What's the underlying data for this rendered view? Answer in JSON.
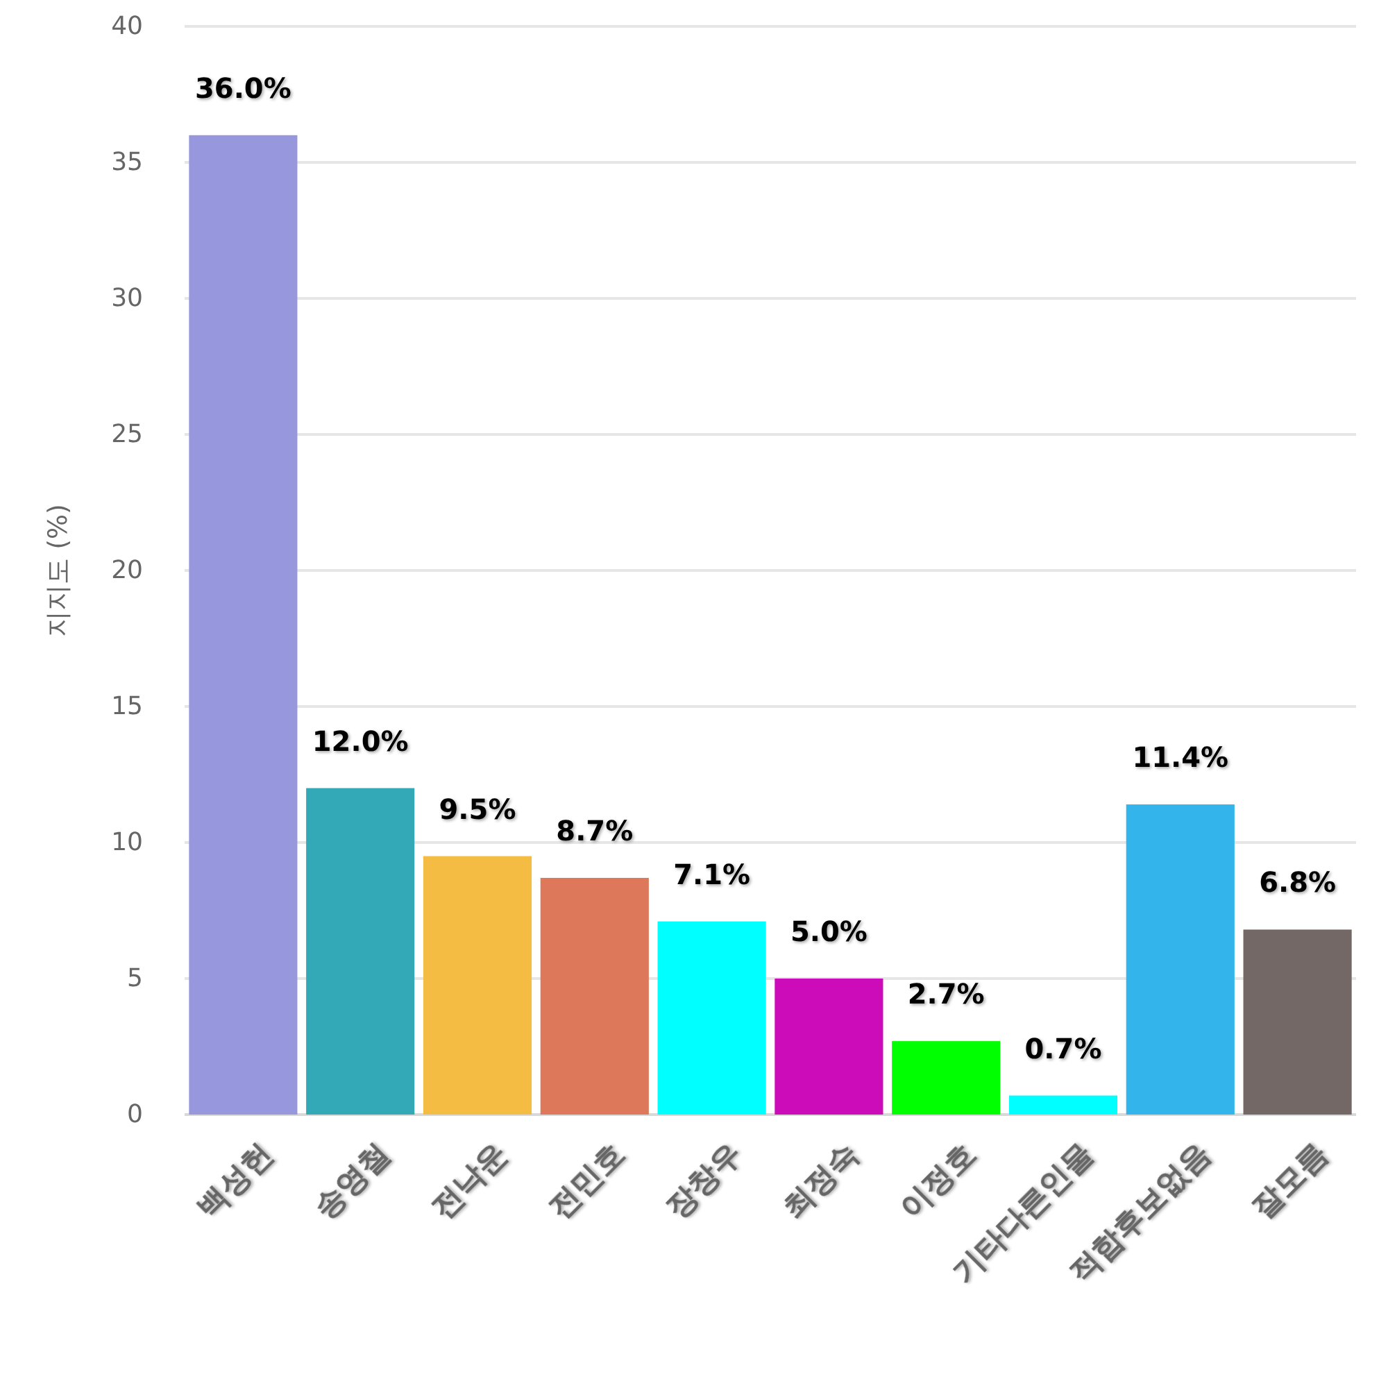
{
  "chart_data": {
    "type": "bar",
    "ylabel": "지지도 (%)",
    "categories": [
      "백성헌",
      "송영철",
      "전낙운",
      "전민호",
      "장창우",
      "최정숙",
      "이정호",
      "기타다른인물",
      "적합후보없음",
      "잘모름"
    ],
    "values": [
      36.0,
      12.0,
      9.5,
      8.7,
      7.1,
      5.0,
      2.7,
      0.7,
      11.4,
      6.8
    ],
    "colors": [
      "#9797dd",
      "#33a9b8",
      "#f4bc42",
      "#dd785a",
      "#00ffff",
      "#cc0cb8",
      "#00ff00",
      "#00ffff",
      "#33b5ec",
      "#736866"
    ],
    "value_labels": [
      "36.0%",
      "12.0%",
      "9.5%",
      "8.7%",
      "7.1%",
      "5.0%",
      "2.7%",
      "0.7%",
      "11.4%",
      "6.8%"
    ],
    "ylim": [
      0,
      40
    ],
    "yticks": [
      0,
      5,
      10,
      15,
      20,
      25,
      30,
      35,
      40
    ],
    "grid": "y"
  }
}
